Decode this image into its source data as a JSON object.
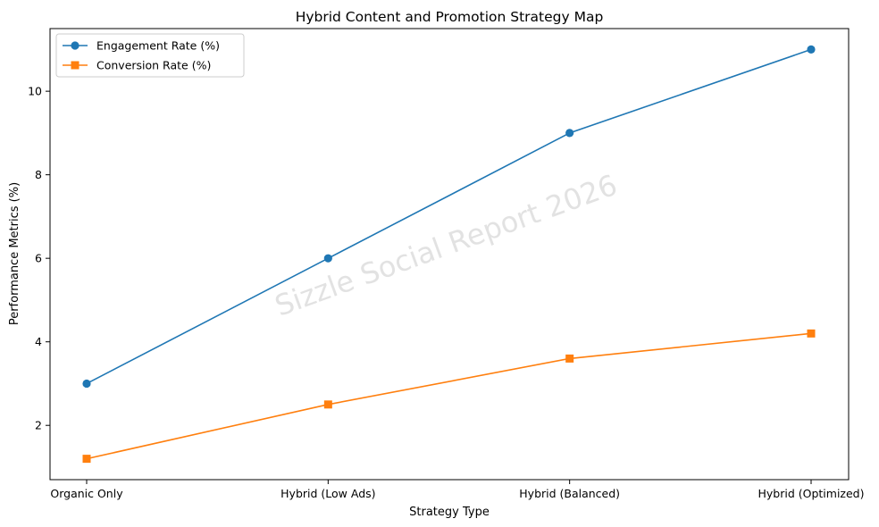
{
  "chart_data": {
    "type": "line",
    "title": "Hybrid Content and Promotion Strategy Map",
    "xlabel": "Strategy Type",
    "ylabel": "Performance Metrics (%)",
    "categories": [
      "Organic Only",
      "Hybrid (Low Ads)",
      "Hybrid (Balanced)",
      "Hybrid (Optimized)"
    ],
    "ylim": [
      0.7,
      11.5
    ],
    "yticks": [
      2,
      4,
      6,
      8,
      10
    ],
    "grid": false,
    "legend_position": "top-left",
    "watermark": "Sizzle Social Report 2026",
    "series": [
      {
        "name": "Engagement Rate (%)",
        "values": [
          3.0,
          6.0,
          9.0,
          11.0
        ],
        "color": "#1f77b4",
        "marker": "circle"
      },
      {
        "name": "Conversion Rate (%)",
        "values": [
          1.2,
          2.5,
          3.6,
          4.2
        ],
        "color": "#ff7f0e",
        "marker": "square"
      }
    ]
  }
}
